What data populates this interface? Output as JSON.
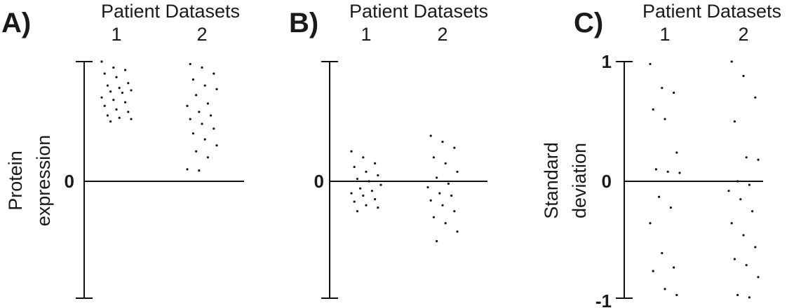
{
  "chart_data": [
    {
      "panel": "A)",
      "type": "scatter",
      "title": "Patient Datasets",
      "categories": [
        "1",
        "2"
      ],
      "ylabel": [
        "Protein",
        "expression"
      ],
      "yticks": [
        "0"
      ],
      "ylim": [
        -1,
        1
      ],
      "series": [
        {
          "category": "1",
          "values": [
            1.0,
            0.95,
            0.93,
            0.9,
            0.87,
            0.82,
            0.8,
            0.78,
            0.76,
            0.75,
            0.74,
            0.7,
            0.68,
            0.66,
            0.63,
            0.6,
            0.58,
            0.55,
            0.53,
            0.52,
            0.5
          ]
        },
        {
          "category": "2",
          "values": [
            0.98,
            0.95,
            0.9,
            0.85,
            0.8,
            0.77,
            0.72,
            0.65,
            0.63,
            0.58,
            0.55,
            0.52,
            0.48,
            0.44,
            0.4,
            0.35,
            0.3,
            0.25,
            0.2,
            0.1,
            0.09
          ]
        }
      ]
    },
    {
      "panel": "B)",
      "type": "scatter",
      "title": "Patient Datasets",
      "categories": [
        "1",
        "2"
      ],
      "ylabel": [],
      "yticks": [
        "0"
      ],
      "ylim": [
        -1,
        1
      ],
      "series": [
        {
          "category": "1",
          "values": [
            0.25,
            0.2,
            0.15,
            0.12,
            0.08,
            0.05,
            0.02,
            0.0,
            -0.03,
            -0.06,
            -0.08,
            -0.1,
            -0.12,
            -0.15,
            -0.17,
            -0.2,
            -0.22,
            -0.25
          ]
        },
        {
          "category": "2",
          "values": [
            0.38,
            0.33,
            0.28,
            0.2,
            0.15,
            0.08,
            0.03,
            -0.02,
            -0.05,
            -0.1,
            -0.12,
            -0.16,
            -0.2,
            -0.25,
            -0.3,
            -0.35,
            -0.42,
            -0.5
          ]
        }
      ]
    },
    {
      "panel": "C)",
      "type": "scatter",
      "title": "Patient Datasets",
      "categories": [
        "1",
        "2"
      ],
      "ylabel": [
        "Standard",
        "deviation"
      ],
      "yticks": [
        "1",
        "0",
        "-1"
      ],
      "ylim": [
        -1,
        1
      ],
      "series": [
        {
          "category": "1",
          "values": [
            0.98,
            0.78,
            0.74,
            0.6,
            0.52,
            0.24,
            0.1,
            0.08,
            0.07,
            -0.13,
            -0.22,
            -0.35,
            -0.6,
            -0.72,
            -0.75,
            -0.9,
            -0.95
          ]
        },
        {
          "category": "2",
          "values": [
            1.0,
            0.88,
            0.7,
            0.5,
            0.2,
            0.18,
            0.0,
            -0.03,
            -0.08,
            -0.15,
            -0.25,
            -0.35,
            -0.45,
            -0.55,
            -0.65,
            -0.7,
            -0.8,
            -0.95,
            -0.97
          ]
        }
      ]
    }
  ]
}
